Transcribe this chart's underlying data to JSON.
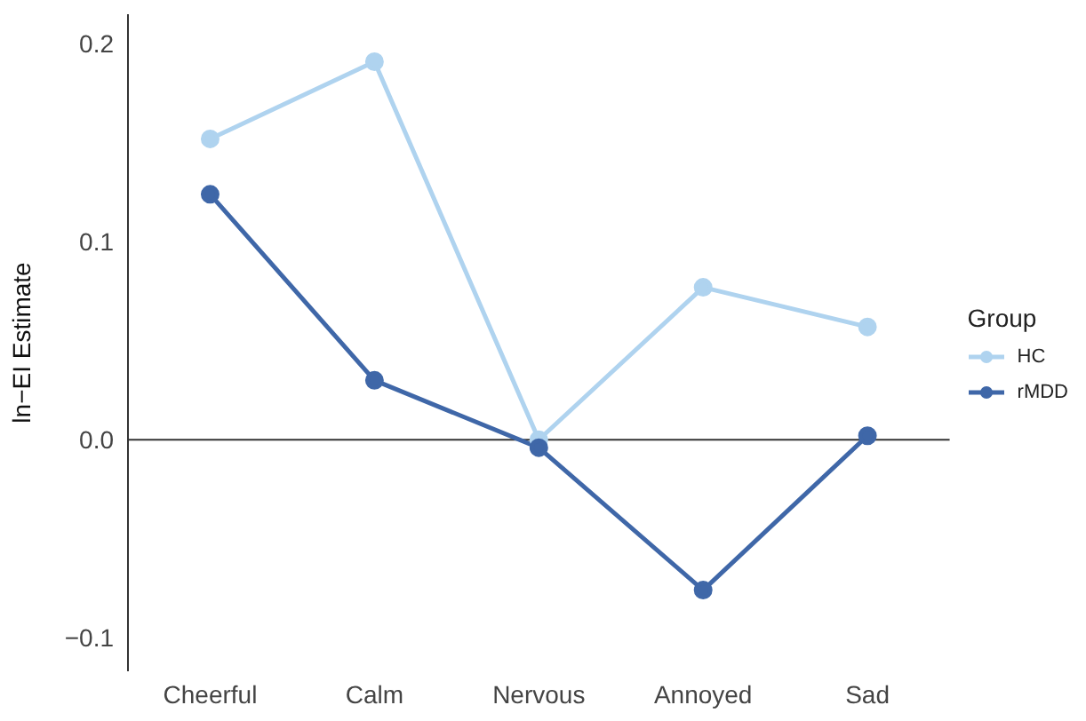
{
  "chart_data": {
    "type": "line",
    "ylabel": "ln−EI Estimate",
    "legend_title": "Group",
    "categories": [
      "Cheerful",
      "Calm",
      "Nervous",
      "Annoyed",
      "Sad"
    ],
    "series": [
      {
        "name": "HC",
        "color": "#afd3ef",
        "values": [
          0.152,
          0.191,
          0.0,
          0.077,
          0.057
        ]
      },
      {
        "name": "rMDD",
        "color": "#3f67a8",
        "values": [
          0.124,
          0.03,
          -0.004,
          -0.076,
          0.002
        ]
      }
    ],
    "ylim": [
      -0.117,
      0.215
    ],
    "yticks": [
      {
        "value": -0.1,
        "label": "−0.1"
      },
      {
        "value": 0,
        "label": "0.0"
      },
      {
        "value": 0.1,
        "label": "0.1"
      },
      {
        "value": 0.2,
        "label": "0.2"
      }
    ],
    "ref_lines": [
      {
        "axis": "y",
        "value": 0,
        "color": "#333333"
      }
    ],
    "grid": false,
    "legend": "right",
    "marker": "circle",
    "line_style": "solid"
  }
}
